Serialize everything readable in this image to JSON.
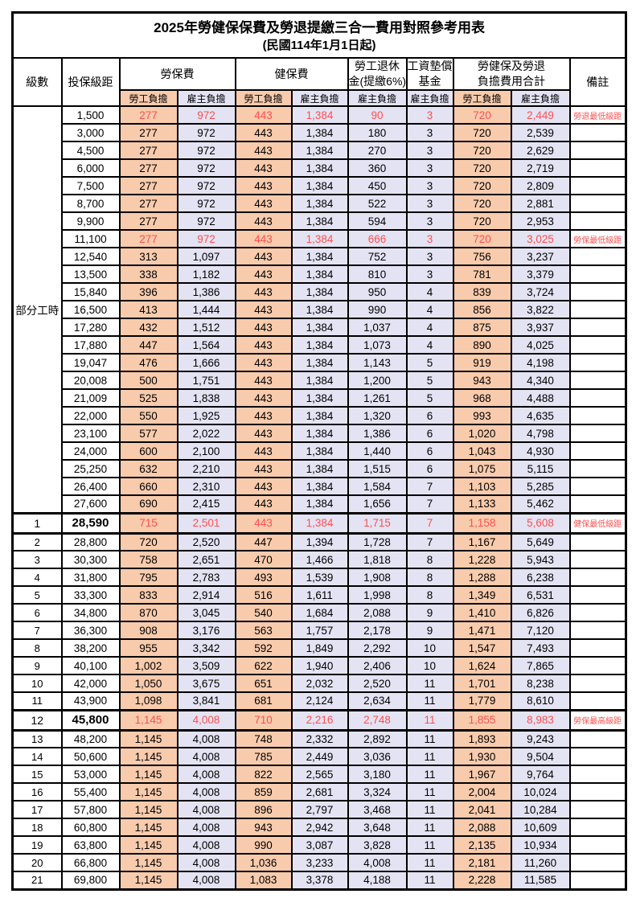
{
  "title": "2025年勞健保保費及勞退提繳三合一費用對照參考用表",
  "subtitle": "(民國114年1月1日起)",
  "header": {
    "level": "級數",
    "bracket": "投保級距",
    "labor_fee": "勞保費",
    "health_fee": "健保費",
    "pension_l1": "勞工退休",
    "pension_l2": "金(提繳6%)",
    "fund_l1": "工資墊償",
    "fund_l2": "基金",
    "total_l1": "勞健保及勞退",
    "total_l2": "負擔費用合計",
    "remark": "備註",
    "employee_share": "勞工負擔",
    "employer_share": "雇主負擔"
  },
  "part_time_label": "部分工時",
  "colors": {
    "employee_fill": "#F8CBAD",
    "employer_fill": "#E4E3F3",
    "highlight_text": "#FF4F4F",
    "border": "#000000"
  },
  "remarks_legend": {
    "pension_min": "勞退最低級距",
    "labor_min": "勞保最低級距",
    "health_min": "健保最低級距",
    "labor_max": "勞保最高級距"
  },
  "rows": [
    {
      "lv": "",
      "br": "1,500",
      "li_e": "277",
      "li_r": "972",
      "hi_e": "443",
      "hi_r": "1,384",
      "pen": "90",
      "fund": "3",
      "to_e": "720",
      "to_r": "2,449",
      "rm": "勞退最低級距",
      "red": true,
      "hl": false
    },
    {
      "lv": "",
      "br": "3,000",
      "li_e": "277",
      "li_r": "972",
      "hi_e": "443",
      "hi_r": "1,384",
      "pen": "180",
      "fund": "3",
      "to_e": "720",
      "to_r": "2,539",
      "rm": "",
      "red": false,
      "hl": false
    },
    {
      "lv": "",
      "br": "4,500",
      "li_e": "277",
      "li_r": "972",
      "hi_e": "443",
      "hi_r": "1,384",
      "pen": "270",
      "fund": "3",
      "to_e": "720",
      "to_r": "2,629",
      "rm": "",
      "red": false,
      "hl": false
    },
    {
      "lv": "",
      "br": "6,000",
      "li_e": "277",
      "li_r": "972",
      "hi_e": "443",
      "hi_r": "1,384",
      "pen": "360",
      "fund": "3",
      "to_e": "720",
      "to_r": "2,719",
      "rm": "",
      "red": false,
      "hl": false
    },
    {
      "lv": "",
      "br": "7,500",
      "li_e": "277",
      "li_r": "972",
      "hi_e": "443",
      "hi_r": "1,384",
      "pen": "450",
      "fund": "3",
      "to_e": "720",
      "to_r": "2,809",
      "rm": "",
      "red": false,
      "hl": false
    },
    {
      "lv": "",
      "br": "8,700",
      "li_e": "277",
      "li_r": "972",
      "hi_e": "443",
      "hi_r": "1,384",
      "pen": "522",
      "fund": "3",
      "to_e": "720",
      "to_r": "2,881",
      "rm": "",
      "red": false,
      "hl": false
    },
    {
      "lv": "",
      "br": "9,900",
      "li_e": "277",
      "li_r": "972",
      "hi_e": "443",
      "hi_r": "1,384",
      "pen": "594",
      "fund": "3",
      "to_e": "720",
      "to_r": "2,953",
      "rm": "",
      "red": false,
      "hl": false
    },
    {
      "lv": "",
      "br": "11,100",
      "li_e": "277",
      "li_r": "972",
      "hi_e": "443",
      "hi_r": "1,384",
      "pen": "666",
      "fund": "3",
      "to_e": "720",
      "to_r": "3,025",
      "rm": "勞保最低級距",
      "red": true,
      "hl": false
    },
    {
      "lv": "",
      "br": "12,540",
      "li_e": "313",
      "li_r": "1,097",
      "hi_e": "443",
      "hi_r": "1,384",
      "pen": "752",
      "fund": "3",
      "to_e": "756",
      "to_r": "3,237",
      "rm": "",
      "red": false,
      "hl": false
    },
    {
      "lv": "",
      "br": "13,500",
      "li_e": "338",
      "li_r": "1,182",
      "hi_e": "443",
      "hi_r": "1,384",
      "pen": "810",
      "fund": "3",
      "to_e": "781",
      "to_r": "3,379",
      "rm": "",
      "red": false,
      "hl": false
    },
    {
      "lv": "",
      "br": "15,840",
      "li_e": "396",
      "li_r": "1,386",
      "hi_e": "443",
      "hi_r": "1,384",
      "pen": "950",
      "fund": "4",
      "to_e": "839",
      "to_r": "3,724",
      "rm": "",
      "red": false,
      "hl": false
    },
    {
      "lv": "",
      "br": "16,500",
      "li_e": "413",
      "li_r": "1,444",
      "hi_e": "443",
      "hi_r": "1,384",
      "pen": "990",
      "fund": "4",
      "to_e": "856",
      "to_r": "3,822",
      "rm": "",
      "red": false,
      "hl": false
    },
    {
      "lv": "",
      "br": "17,280",
      "li_e": "432",
      "li_r": "1,512",
      "hi_e": "443",
      "hi_r": "1,384",
      "pen": "1,037",
      "fund": "4",
      "to_e": "875",
      "to_r": "3,937",
      "rm": "",
      "red": false,
      "hl": false
    },
    {
      "lv": "",
      "br": "17,880",
      "li_e": "447",
      "li_r": "1,564",
      "hi_e": "443",
      "hi_r": "1,384",
      "pen": "1,073",
      "fund": "4",
      "to_e": "890",
      "to_r": "4,025",
      "rm": "",
      "red": false,
      "hl": false
    },
    {
      "lv": "",
      "br": "19,047",
      "li_e": "476",
      "li_r": "1,666",
      "hi_e": "443",
      "hi_r": "1,384",
      "pen": "1,143",
      "fund": "5",
      "to_e": "919",
      "to_r": "4,198",
      "rm": "",
      "red": false,
      "hl": false
    },
    {
      "lv": "",
      "br": "20,008",
      "li_e": "500",
      "li_r": "1,751",
      "hi_e": "443",
      "hi_r": "1,384",
      "pen": "1,200",
      "fund": "5",
      "to_e": "943",
      "to_r": "4,340",
      "rm": "",
      "red": false,
      "hl": false
    },
    {
      "lv": "",
      "br": "21,009",
      "li_e": "525",
      "li_r": "1,838",
      "hi_e": "443",
      "hi_r": "1,384",
      "pen": "1,261",
      "fund": "5",
      "to_e": "968",
      "to_r": "4,488",
      "rm": "",
      "red": false,
      "hl": false
    },
    {
      "lv": "",
      "br": "22,000",
      "li_e": "550",
      "li_r": "1,925",
      "hi_e": "443",
      "hi_r": "1,384",
      "pen": "1,320",
      "fund": "6",
      "to_e": "993",
      "to_r": "4,635",
      "rm": "",
      "red": false,
      "hl": false
    },
    {
      "lv": "",
      "br": "23,100",
      "li_e": "577",
      "li_r": "2,022",
      "hi_e": "443",
      "hi_r": "1,384",
      "pen": "1,386",
      "fund": "6",
      "to_e": "1,020",
      "to_r": "4,798",
      "rm": "",
      "red": false,
      "hl": false
    },
    {
      "lv": "",
      "br": "24,000",
      "li_e": "600",
      "li_r": "2,100",
      "hi_e": "443",
      "hi_r": "1,384",
      "pen": "1,440",
      "fund": "6",
      "to_e": "1,043",
      "to_r": "4,930",
      "rm": "",
      "red": false,
      "hl": false
    },
    {
      "lv": "",
      "br": "25,250",
      "li_e": "632",
      "li_r": "2,210",
      "hi_e": "443",
      "hi_r": "1,384",
      "pen": "1,515",
      "fund": "6",
      "to_e": "1,075",
      "to_r": "5,115",
      "rm": "",
      "red": false,
      "hl": false
    },
    {
      "lv": "",
      "br": "26,400",
      "li_e": "660",
      "li_r": "2,310",
      "hi_e": "443",
      "hi_r": "1,384",
      "pen": "1,584",
      "fund": "7",
      "to_e": "1,103",
      "to_r": "5,285",
      "rm": "",
      "red": false,
      "hl": false
    },
    {
      "lv": "",
      "br": "27,600",
      "li_e": "690",
      "li_r": "2,415",
      "hi_e": "443",
      "hi_r": "1,384",
      "pen": "1,656",
      "fund": "7",
      "to_e": "1,133",
      "to_r": "5,462",
      "rm": "",
      "red": false,
      "hl": false
    },
    {
      "lv": "1",
      "br": "28,590",
      "li_e": "715",
      "li_r": "2,501",
      "hi_e": "443",
      "hi_r": "1,384",
      "pen": "1,715",
      "fund": "7",
      "to_e": "1,158",
      "to_r": "5,608",
      "rm": "健保最低級距",
      "red": true,
      "hl": true
    },
    {
      "lv": "2",
      "br": "28,800",
      "li_e": "720",
      "li_r": "2,520",
      "hi_e": "447",
      "hi_r": "1,394",
      "pen": "1,728",
      "fund": "7",
      "to_e": "1,167",
      "to_r": "5,649",
      "rm": "",
      "red": false,
      "hl": false
    },
    {
      "lv": "3",
      "br": "30,300",
      "li_e": "758",
      "li_r": "2,651",
      "hi_e": "470",
      "hi_r": "1,466",
      "pen": "1,818",
      "fund": "8",
      "to_e": "1,228",
      "to_r": "5,943",
      "rm": "",
      "red": false,
      "hl": false
    },
    {
      "lv": "4",
      "br": "31,800",
      "li_e": "795",
      "li_r": "2,783",
      "hi_e": "493",
      "hi_r": "1,539",
      "pen": "1,908",
      "fund": "8",
      "to_e": "1,288",
      "to_r": "6,238",
      "rm": "",
      "red": false,
      "hl": false
    },
    {
      "lv": "5",
      "br": "33,300",
      "li_e": "833",
      "li_r": "2,914",
      "hi_e": "516",
      "hi_r": "1,611",
      "pen": "1,998",
      "fund": "8",
      "to_e": "1,349",
      "to_r": "6,531",
      "rm": "",
      "red": false,
      "hl": false
    },
    {
      "lv": "6",
      "br": "34,800",
      "li_e": "870",
      "li_r": "3,045",
      "hi_e": "540",
      "hi_r": "1,684",
      "pen": "2,088",
      "fund": "9",
      "to_e": "1,410",
      "to_r": "6,826",
      "rm": "",
      "red": false,
      "hl": false
    },
    {
      "lv": "7",
      "br": "36,300",
      "li_e": "908",
      "li_r": "3,176",
      "hi_e": "563",
      "hi_r": "1,757",
      "pen": "2,178",
      "fund": "9",
      "to_e": "1,471",
      "to_r": "7,120",
      "rm": "",
      "red": false,
      "hl": false
    },
    {
      "lv": "8",
      "br": "38,200",
      "li_e": "955",
      "li_r": "3,342",
      "hi_e": "592",
      "hi_r": "1,849",
      "pen": "2,292",
      "fund": "10",
      "to_e": "1,547",
      "to_r": "7,493",
      "rm": "",
      "red": false,
      "hl": false
    },
    {
      "lv": "9",
      "br": "40,100",
      "li_e": "1,002",
      "li_r": "3,509",
      "hi_e": "622",
      "hi_r": "1,940",
      "pen": "2,406",
      "fund": "10",
      "to_e": "1,624",
      "to_r": "7,865",
      "rm": "",
      "red": false,
      "hl": false
    },
    {
      "lv": "10",
      "br": "42,000",
      "li_e": "1,050",
      "li_r": "3,675",
      "hi_e": "651",
      "hi_r": "2,032",
      "pen": "2,520",
      "fund": "11",
      "to_e": "1,701",
      "to_r": "8,238",
      "rm": "",
      "red": false,
      "hl": false
    },
    {
      "lv": "11",
      "br": "43,900",
      "li_e": "1,098",
      "li_r": "3,841",
      "hi_e": "681",
      "hi_r": "2,124",
      "pen": "2,634",
      "fund": "11",
      "to_e": "1,779",
      "to_r": "8,610",
      "rm": "",
      "red": false,
      "hl": false
    },
    {
      "lv": "12",
      "br": "45,800",
      "li_e": "1,145",
      "li_r": "4,008",
      "hi_e": "710",
      "hi_r": "2,216",
      "pen": "2,748",
      "fund": "11",
      "to_e": "1,855",
      "to_r": "8,983",
      "rm": "勞保最高級距",
      "red": true,
      "hl": true
    },
    {
      "lv": "13",
      "br": "48,200",
      "li_e": "1,145",
      "li_r": "4,008",
      "hi_e": "748",
      "hi_r": "2,332",
      "pen": "2,892",
      "fund": "11",
      "to_e": "1,893",
      "to_r": "9,243",
      "rm": "",
      "red": false,
      "hl": false
    },
    {
      "lv": "14",
      "br": "50,600",
      "li_e": "1,145",
      "li_r": "4,008",
      "hi_e": "785",
      "hi_r": "2,449",
      "pen": "3,036",
      "fund": "11",
      "to_e": "1,930",
      "to_r": "9,504",
      "rm": "",
      "red": false,
      "hl": false
    },
    {
      "lv": "15",
      "br": "53,000",
      "li_e": "1,145",
      "li_r": "4,008",
      "hi_e": "822",
      "hi_r": "2,565",
      "pen": "3,180",
      "fund": "11",
      "to_e": "1,967",
      "to_r": "9,764",
      "rm": "",
      "red": false,
      "hl": false
    },
    {
      "lv": "16",
      "br": "55,400",
      "li_e": "1,145",
      "li_r": "4,008",
      "hi_e": "859",
      "hi_r": "2,681",
      "pen": "3,324",
      "fund": "11",
      "to_e": "2,004",
      "to_r": "10,024",
      "rm": "",
      "red": false,
      "hl": false
    },
    {
      "lv": "17",
      "br": "57,800",
      "li_e": "1,145",
      "li_r": "4,008",
      "hi_e": "896",
      "hi_r": "2,797",
      "pen": "3,468",
      "fund": "11",
      "to_e": "2,041",
      "to_r": "10,284",
      "rm": "",
      "red": false,
      "hl": false
    },
    {
      "lv": "18",
      "br": "60,800",
      "li_e": "1,145",
      "li_r": "4,008",
      "hi_e": "943",
      "hi_r": "2,942",
      "pen": "3,648",
      "fund": "11",
      "to_e": "2,088",
      "to_r": "10,609",
      "rm": "",
      "red": false,
      "hl": false
    },
    {
      "lv": "19",
      "br": "63,800",
      "li_e": "1,145",
      "li_r": "4,008",
      "hi_e": "990",
      "hi_r": "3,087",
      "pen": "3,828",
      "fund": "11",
      "to_e": "2,135",
      "to_r": "10,934",
      "rm": "",
      "red": false,
      "hl": false
    },
    {
      "lv": "20",
      "br": "66,800",
      "li_e": "1,145",
      "li_r": "4,008",
      "hi_e": "1,036",
      "hi_r": "3,233",
      "pen": "4,008",
      "fund": "11",
      "to_e": "2,181",
      "to_r": "11,260",
      "rm": "",
      "red": false,
      "hl": false
    },
    {
      "lv": "21",
      "br": "69,800",
      "li_e": "1,145",
      "li_r": "4,008",
      "hi_e": "1,083",
      "hi_r": "3,378",
      "pen": "4,188",
      "fund": "11",
      "to_e": "2,228",
      "to_r": "11,585",
      "rm": "",
      "red": false,
      "hl": false
    }
  ]
}
